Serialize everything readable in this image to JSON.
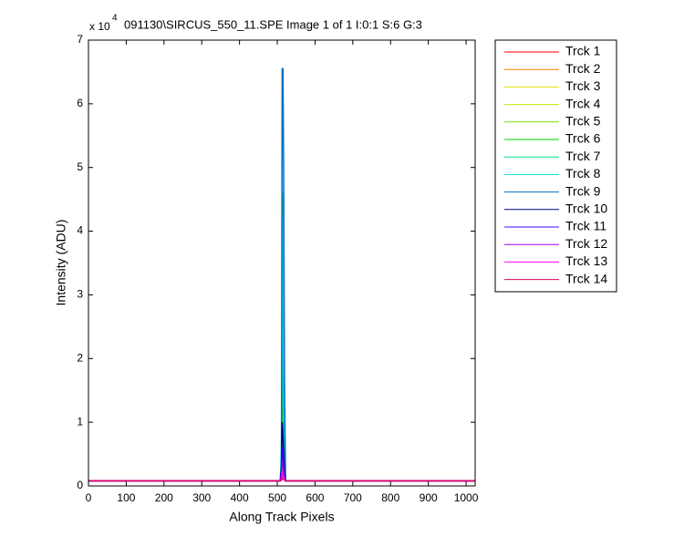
{
  "chart_data": {
    "type": "line",
    "title": "091130\\SIRCUS_550_11.SPE  Image 1 of 1  I:0:1  S:6  G:3",
    "y_multiplier": "x 10",
    "y_multiplier_exponent": "4",
    "xlabel": "Along Track Pixels",
    "ylabel": "Intensity (ADU)",
    "x": [
      0,
      508,
      511,
      513,
      515,
      517,
      519,
      522,
      1024
    ],
    "xlim": [
      0,
      1024
    ],
    "xticks": [
      0,
      100,
      200,
      300,
      400,
      500,
      600,
      700,
      800,
      900,
      1000
    ],
    "ylim": [
      0,
      7
    ],
    "yticks": [
      0,
      1,
      2,
      3,
      4,
      5,
      6,
      7
    ],
    "legend": "outside-top-right",
    "series": [
      {
        "name": "Trck 1",
        "color": "#ff0000",
        "values": [
          0.08,
          0.08,
          0.1,
          0.15,
          0.2,
          0.15,
          0.1,
          0.08,
          0.08
        ]
      },
      {
        "name": "Trck 2",
        "color": "#ff8000",
        "values": [
          0.08,
          0.08,
          0.12,
          0.2,
          0.3,
          0.2,
          0.12,
          0.08,
          0.08
        ]
      },
      {
        "name": "Trck 3",
        "color": "#e0e000",
        "values": [
          0.08,
          0.08,
          0.15,
          0.3,
          0.5,
          0.3,
          0.15,
          0.08,
          0.08
        ]
      },
      {
        "name": "Trck 4",
        "color": "#c8e000",
        "values": [
          0.08,
          0.08,
          0.2,
          0.5,
          0.8,
          0.5,
          0.2,
          0.08,
          0.08
        ]
      },
      {
        "name": "Trck 5",
        "color": "#80e000",
        "values": [
          0.08,
          0.08,
          0.3,
          0.8,
          1.2,
          0.8,
          0.3,
          0.08,
          0.08
        ]
      },
      {
        "name": "Trck 6",
        "color": "#00d000",
        "values": [
          0.08,
          0.08,
          0.4,
          1.2,
          2.3,
          1.0,
          0.4,
          0.08,
          0.08
        ]
      },
      {
        "name": "Trck 7",
        "color": "#00e080",
        "values": [
          0.08,
          0.08,
          0.5,
          1.8,
          4.6,
          1.5,
          0.5,
          0.08,
          0.08
        ]
      },
      {
        "name": "Trck 8",
        "color": "#00e0e0",
        "values": [
          0.08,
          0.08,
          0.6,
          2.3,
          4.2,
          1.7,
          0.6,
          0.08,
          0.08
        ]
      },
      {
        "name": "Trck 9",
        "color": "#0070c0",
        "values": [
          0.08,
          0.08,
          0.3,
          6.55,
          6.55,
          4.9,
          1.7,
          0.08,
          0.08
        ]
      },
      {
        "name": "Trck 10",
        "color": "#000080",
        "values": [
          0.08,
          0.08,
          0.3,
          1.0,
          0.8,
          0.5,
          0.2,
          0.08,
          0.08
        ]
      },
      {
        "name": "Trck 11",
        "color": "#4000ff",
        "values": [
          0.08,
          0.08,
          0.2,
          0.6,
          0.5,
          0.3,
          0.15,
          0.08,
          0.08
        ]
      },
      {
        "name": "Trck 12",
        "color": "#a000e0",
        "values": [
          0.08,
          0.08,
          0.15,
          0.4,
          0.3,
          0.2,
          0.1,
          0.08,
          0.08
        ]
      },
      {
        "name": "Trck 13",
        "color": "#ff00ff",
        "values": [
          0.08,
          0.08,
          0.1,
          0.2,
          0.2,
          0.15,
          0.1,
          0.08,
          0.08
        ]
      },
      {
        "name": "Trck 14",
        "color": "#e00060",
        "values": [
          0.08,
          0.08,
          0.09,
          0.12,
          0.12,
          0.1,
          0.09,
          0.08,
          0.08
        ]
      }
    ]
  }
}
